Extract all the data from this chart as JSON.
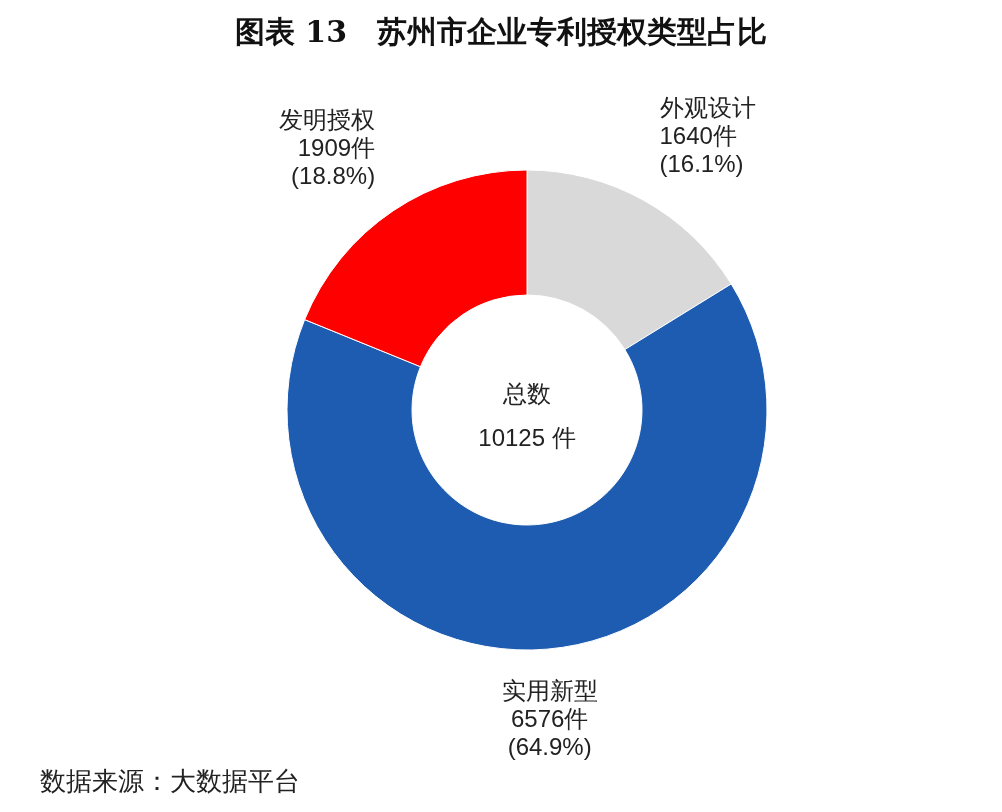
{
  "chart_data": {
    "type": "donut",
    "title": "图表 13　苏州市企业专利授权类型占比",
    "categories": [
      "外观设计",
      "实用新型",
      "发明授权"
    ],
    "values": [
      1640,
      6576,
      1909
    ],
    "colors": [
      "#d9d9d9",
      "#1d5cb0",
      "#ff0000"
    ],
    "value_labels": [
      "1640件\n(16.1%)",
      "6576件\n(64.9%)",
      "1909件\n(18.8%)"
    ],
    "annotations": [
      "总数\n10125 件",
      "数据来源：大数据平台"
    ]
  }
}
